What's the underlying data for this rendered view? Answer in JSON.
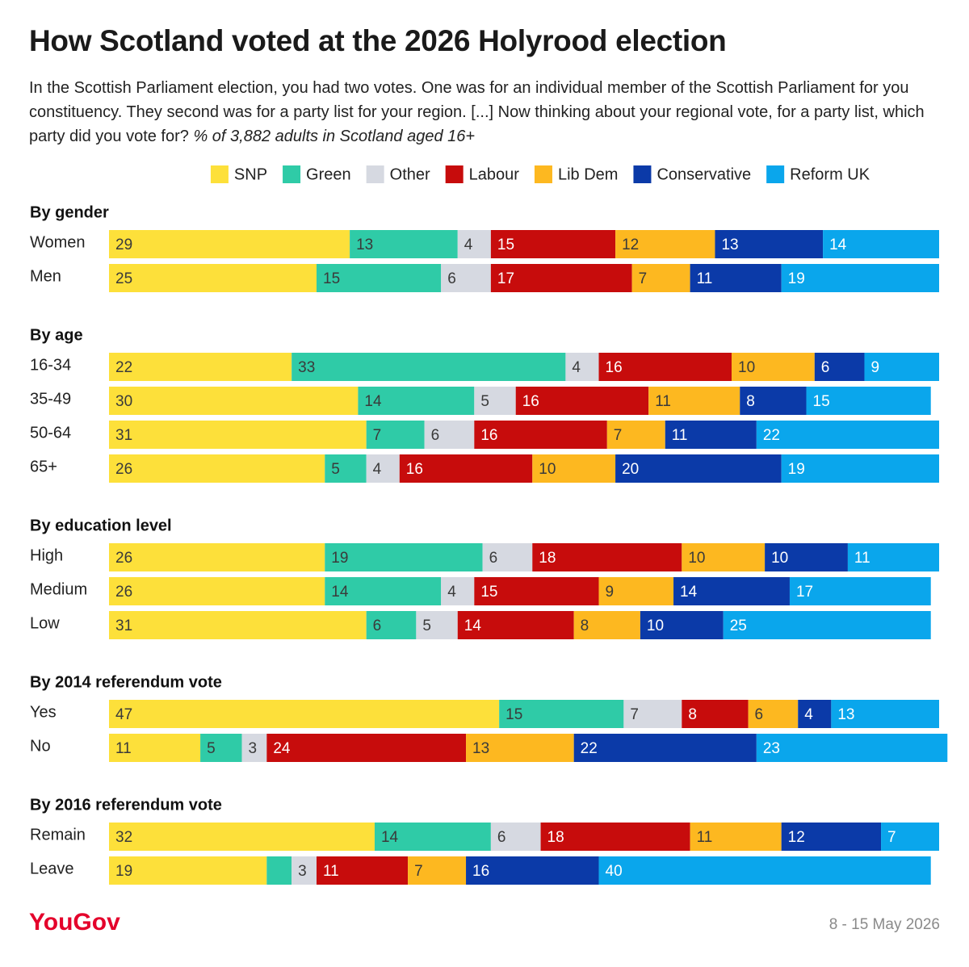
{
  "title": "How Scotland voted at the 2026 Holyrood election",
  "subtitle": "In the Scottish Parliament election, you had two votes. One was for an individual member of the Scottish Parliament for you constituency. They second was for a party list for your region. [...] Now thinking about your regional vote, for a party list, which party did you vote for?",
  "subtitle_note": "% of 3,882 adults in Scotland aged 16+",
  "logo": "YouGov",
  "date": "8 - 15 May 2026",
  "chart_data": {
    "type": "stacked-bar",
    "orientation": "horizontal",
    "xlim": [
      0,
      100
    ],
    "groups": [
      {
        "title": "By gender",
        "categories": [
          "Women",
          "Men"
        ]
      },
      {
        "title": "By age",
        "categories": [
          "16-34",
          "35-49",
          "50-64",
          "65+"
        ]
      },
      {
        "title": "By education level",
        "categories": [
          "High",
          "Medium",
          "Low"
        ]
      },
      {
        "title": "By 2014 referendum vote",
        "categories": [
          "Yes",
          "No"
        ]
      },
      {
        "title": "By 2016 referendum vote",
        "categories": [
          "Remain",
          "Leave"
        ]
      }
    ],
    "series": [
      {
        "name": "SNP",
        "color": "#fde03a",
        "label_color": "#3a3a3a",
        "values": [
          29,
          25,
          22,
          30,
          31,
          26,
          26,
          26,
          31,
          47,
          11,
          32,
          19
        ]
      },
      {
        "name": "Green",
        "color": "#2fcba7",
        "label_color": "#3a3a3a",
        "values": [
          13,
          15,
          33,
          14,
          7,
          5,
          19,
          14,
          6,
          15,
          5,
          14,
          3
        ],
        "value_labels": [
          "13",
          "15",
          "33",
          "14",
          "7",
          "5",
          "19",
          "14",
          "6",
          "15",
          "5",
          "14",
          null
        ]
      },
      {
        "name": "Other",
        "color": "#d6d9e1",
        "label_color": "#3a3a3a",
        "values": [
          4,
          6,
          4,
          5,
          6,
          4,
          6,
          4,
          5,
          7,
          3,
          6,
          3
        ]
      },
      {
        "name": "Labour",
        "color": "#c70c0c",
        "label_color": "#ffffff",
        "values": [
          15,
          17,
          16,
          16,
          16,
          16,
          18,
          15,
          14,
          8,
          24,
          18,
          11
        ]
      },
      {
        "name": "Lib Dem",
        "color": "#fdb820",
        "label_color": "#3a3a3a",
        "values": [
          12,
          7,
          10,
          11,
          7,
          10,
          10,
          9,
          8,
          6,
          13,
          11,
          7
        ]
      },
      {
        "name": "Conservative",
        "color": "#0b3aa8",
        "label_color": "#ffffff",
        "values": [
          13,
          11,
          6,
          8,
          11,
          20,
          10,
          14,
          10,
          4,
          22,
          12,
          16
        ]
      },
      {
        "name": "Reform UK",
        "color": "#0aa6ec",
        "label_color": "#ffffff",
        "values": [
          14,
          19,
          9,
          15,
          22,
          19,
          11,
          17,
          25,
          13,
          23,
          7,
          40
        ]
      }
    ]
  }
}
